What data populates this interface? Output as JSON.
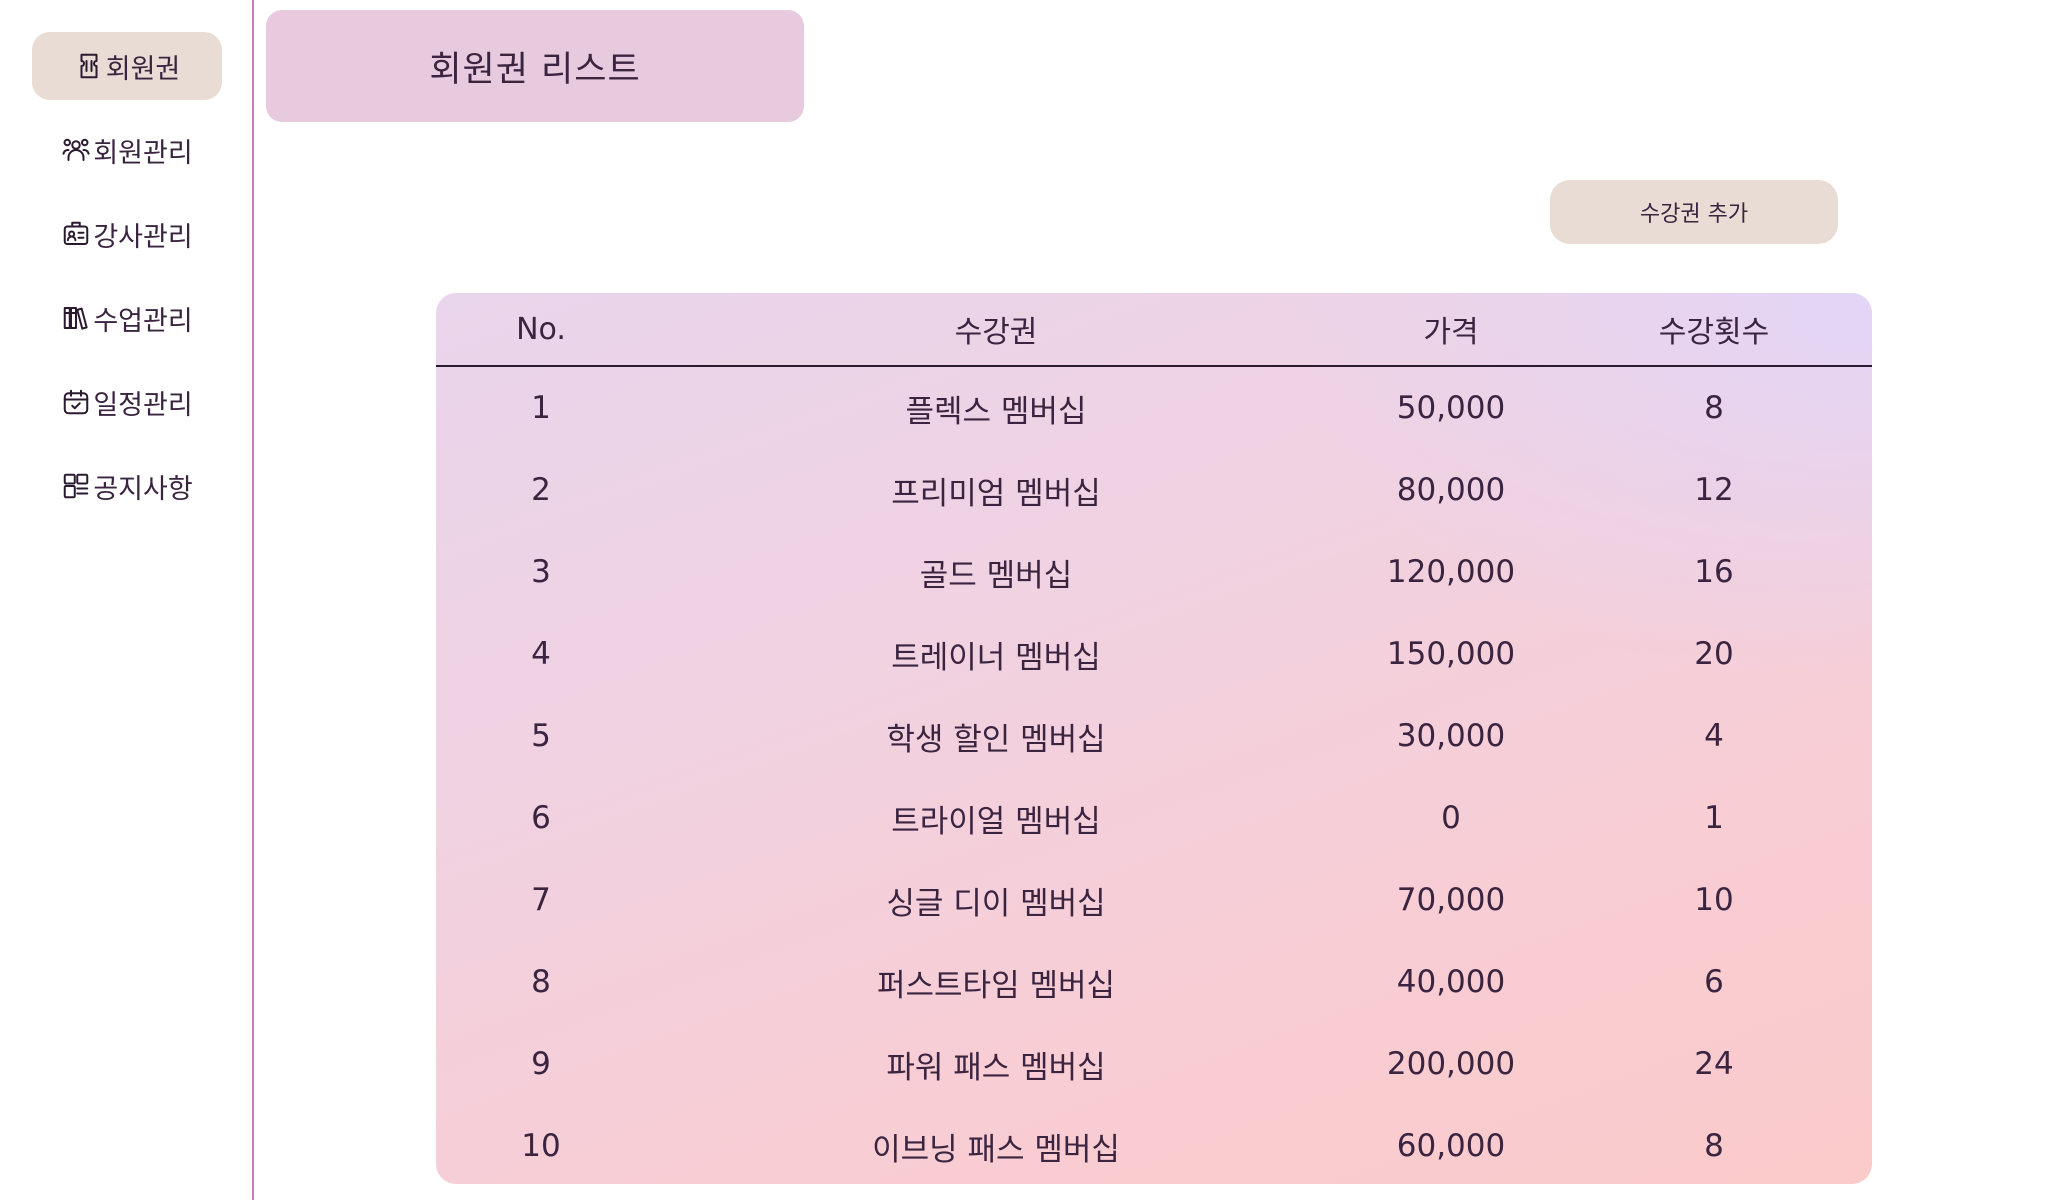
{
  "sidebar": {
    "items": [
      {
        "label": "회원권",
        "icon": "ticket-icon",
        "active": true
      },
      {
        "label": "회원관리",
        "icon": "users-icon",
        "active": false
      },
      {
        "label": "강사관리",
        "icon": "id-badge-icon",
        "active": false
      },
      {
        "label": "수업관리",
        "icon": "books-icon",
        "active": false
      },
      {
        "label": "일정관리",
        "icon": "calendar-check-icon",
        "active": false
      },
      {
        "label": "공지사항",
        "icon": "layout-icon",
        "active": false
      }
    ]
  },
  "page": {
    "title": "회원권 리스트",
    "add_button_label": "수강권 추가"
  },
  "table": {
    "columns": [
      "No.",
      "수강권",
      "가격",
      "수강횟수"
    ],
    "rows": [
      [
        "1",
        "플렉스 멤버십",
        "50,000",
        "8"
      ],
      [
        "2",
        "프리미엄 멤버십",
        "80,000",
        "12"
      ],
      [
        "3",
        "골드 멤버십",
        "120,000",
        "16"
      ],
      [
        "4",
        "트레이너 멤버십",
        "150,000",
        "20"
      ],
      [
        "5",
        "학생 할인 멤버십",
        "30,000",
        "4"
      ],
      [
        "6",
        "트라이얼 멤버십",
        "0",
        "1"
      ],
      [
        "7",
        "싱글 디이 멤버십",
        "70,000",
        "10"
      ],
      [
        "8",
        "퍼스트타임 멤버십",
        "40,000",
        "6"
      ],
      [
        "9",
        "파워 패스 멤버십",
        "200,000",
        "24"
      ],
      [
        "10",
        "이브닝 패스 멤버십",
        "60,000",
        "8"
      ]
    ]
  },
  "colors": {
    "accent_border": "#c77dbb",
    "title_bg": "#e8cadf",
    "button_bg": "#e8dcd4",
    "text": "#3a2440"
  }
}
